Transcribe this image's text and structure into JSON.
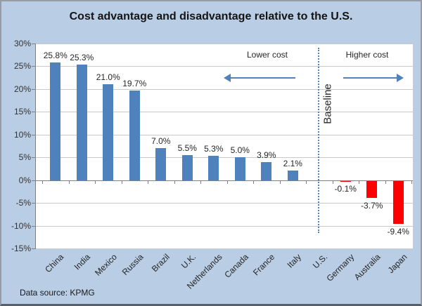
{
  "title": "Cost advantage and disadvantage relative to the U.S.",
  "footer": {
    "source": "Data source: KPMG"
  },
  "annotations": {
    "lower": "Lower cost",
    "higher": "Higher cost",
    "baseline": "Baseline"
  },
  "colors": {
    "background": "#B9CDE5",
    "plot_background": "#FFFFFF",
    "positive_bar": "#4F81BD",
    "negative_bar": "#FF0000",
    "gridline": "#C9C9C9",
    "axis": "#7F7F7F",
    "arrow": "#4F81BD",
    "divider": "#4F81BD"
  },
  "chart_data": {
    "type": "bar",
    "title": "Cost advantage and disadvantage relative to the U.S.",
    "categories": [
      "China",
      "India",
      "Mexico",
      "Russia",
      "Brazil",
      "U.K.",
      "Netherlands",
      "Canada",
      "France",
      "Italy",
      "U.S.",
      "Germany",
      "Australia",
      "Japan"
    ],
    "values": [
      25.8,
      25.3,
      21.0,
      19.7,
      7.0,
      5.5,
      5.3,
      5.0,
      3.9,
      2.1,
      0.0,
      -0.1,
      -3.7,
      -9.4
    ],
    "value_labels": [
      "25.8%",
      "25.3%",
      "21.0%",
      "19.7%",
      "7.0%",
      "5.5%",
      "5.3%",
      "5.0%",
      "3.9%",
      "2.1%",
      "",
      "-0.1%",
      "-3.7%",
      "-9.4%"
    ],
    "xlabel": "",
    "ylabel": "",
    "ylim": [
      -15,
      30
    ],
    "ytick_step": 5,
    "ytick_labels": [
      "30%",
      "25%",
      "20%",
      "15%",
      "10%",
      "5%",
      "0%",
      "-5%",
      "-10%",
      "-15%"
    ],
    "grid": true,
    "legend": "none",
    "annotations": [
      "Lower cost (arrow pointing left)",
      "Higher cost (arrow pointing right)",
      "Baseline (vertical, at dotted divider through U.S. category)"
    ],
    "source_note": "Data source: KPMG"
  }
}
